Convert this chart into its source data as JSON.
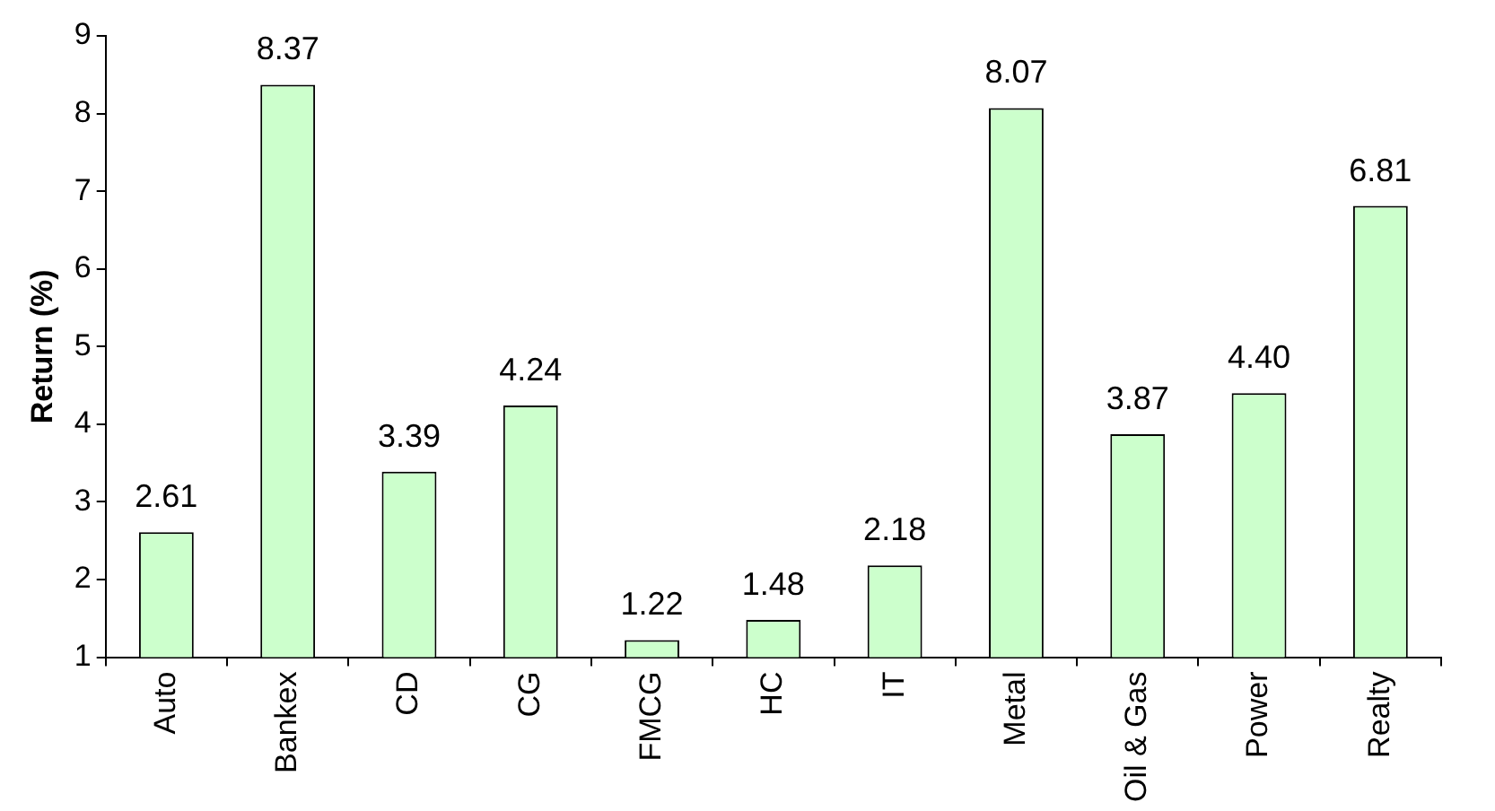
{
  "chart_data": {
    "type": "bar",
    "ylabel": "Return (%)",
    "categories": [
      "Auto",
      "Bankex",
      "CD",
      "CG",
      "FMCG",
      "HC",
      "IT",
      "Metal",
      "Oil & Gas",
      "Power",
      "Realty"
    ],
    "values": [
      2.61,
      8.37,
      3.39,
      4.24,
      1.22,
      1.48,
      2.18,
      8.07,
      3.87,
      4.4,
      6.81
    ],
    "value_labels": [
      "2.61",
      "8.37",
      "3.39",
      "4.24",
      "1.22",
      "1.48",
      "2.18",
      "8.07",
      "3.87",
      "4.40",
      "6.81"
    ],
    "color": "#ccffcc",
    "ylim": [
      1,
      9
    ],
    "yticks": [
      1,
      2,
      3,
      4,
      5,
      6,
      7,
      8,
      9
    ],
    "grid": false,
    "legend": false
  }
}
